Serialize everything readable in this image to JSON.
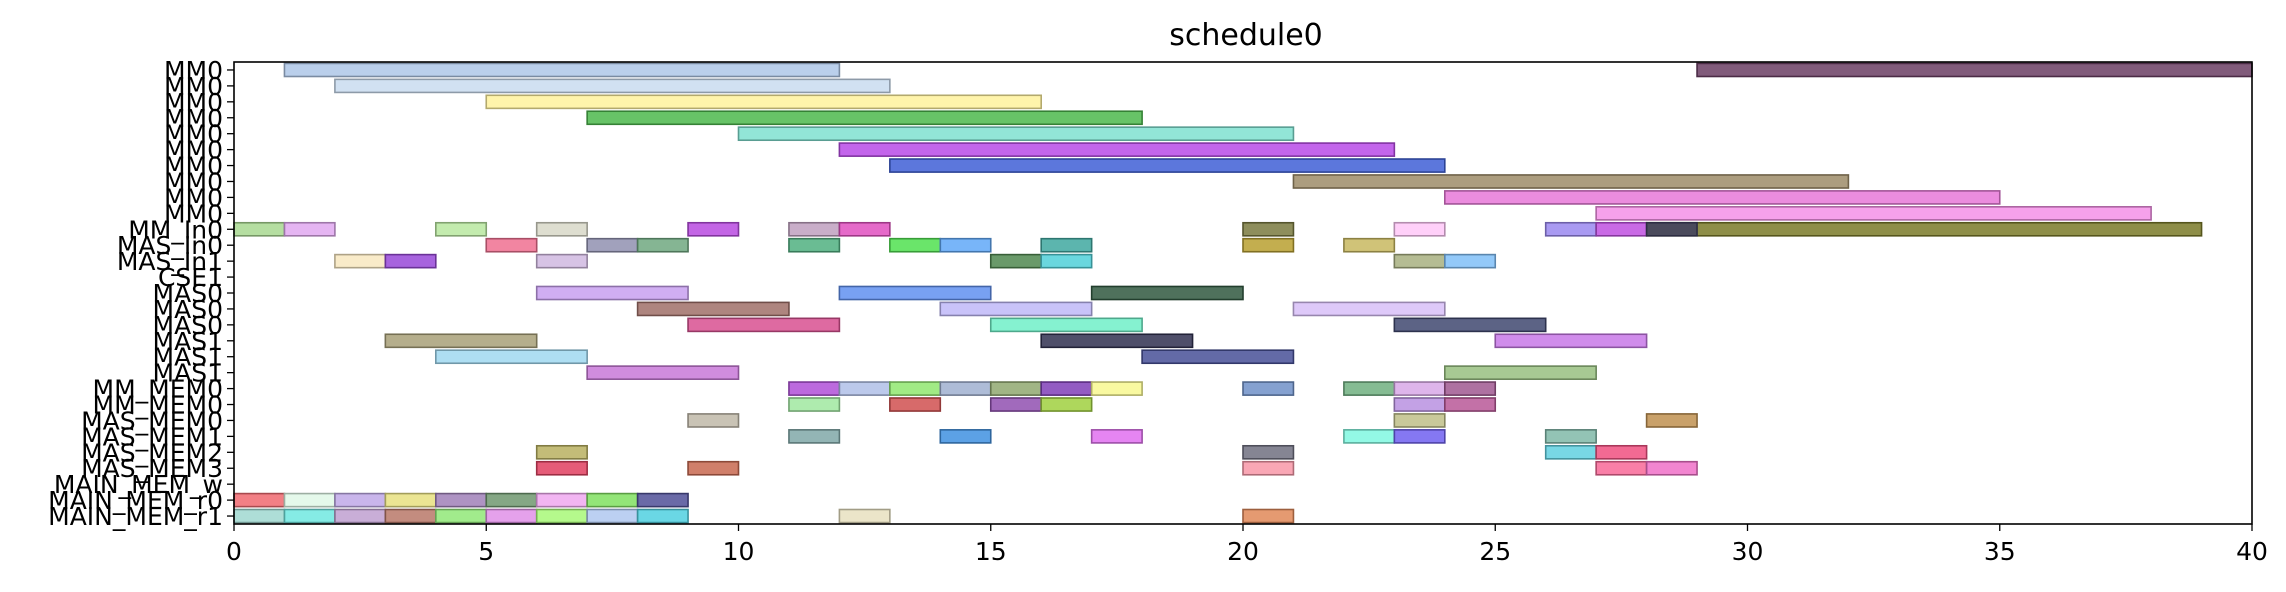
{
  "chart_data": {
    "type": "bar",
    "title": "schedule0",
    "xlabel": "",
    "ylabel": "",
    "xlim": [
      0,
      40
    ],
    "xticks": [
      0,
      5,
      10,
      15,
      20,
      25,
      30,
      35,
      40
    ],
    "grid": false,
    "rows": [
      "MM0",
      "MM0",
      "MM0",
      "MM0",
      "MM0",
      "MM0",
      "MM0",
      "MM0",
      "MM0",
      "MM0",
      "MM_In0",
      "MAS_In0",
      "MAS_In1",
      "CSE1",
      "MAS0",
      "MAS0",
      "MAS0",
      "MAS1",
      "MAS1",
      "MAS1",
      "MM_MEM0",
      "MM_MEM0",
      "MAS_MEM0",
      "MAS_MEM1",
      "MAS_MEM2",
      "MAS_MEM3",
      "MAIN_MEM_w",
      "MAIN_MEM_r0",
      "MAIN_MEM_r1"
    ],
    "bars": [
      {
        "row": 0,
        "start": 1,
        "end": 12,
        "color": "#aec7e8"
      },
      {
        "row": 0,
        "start": 29,
        "end": 40,
        "color": "#6b3e64"
      },
      {
        "row": 1,
        "start": 2,
        "end": 13,
        "color": "#c9dcf0"
      },
      {
        "row": 2,
        "start": 5,
        "end": 16,
        "color": "#fff29c"
      },
      {
        "row": 3,
        "start": 7,
        "end": 18,
        "color": "#4cb84c"
      },
      {
        "row": 4,
        "start": 10,
        "end": 21,
        "color": "#7fe0d0"
      },
      {
        "row": 5,
        "start": 12,
        "end": 23,
        "color": "#b94ae8"
      },
      {
        "row": 6,
        "start": 13,
        "end": 24,
        "color": "#3f5fd6"
      },
      {
        "row": 7,
        "start": 21,
        "end": 32,
        "color": "#9e8c68"
      },
      {
        "row": 8,
        "start": 24,
        "end": 35,
        "color": "#e878d8"
      },
      {
        "row": 9,
        "start": 27,
        "end": 38,
        "color": "#f590e8"
      },
      {
        "row": 10,
        "start": 28,
        "end": 39,
        "color": "#7a7a28"
      },
      {
        "row": 10,
        "start": 0,
        "end": 1,
        "color": "#a8d890"
      },
      {
        "row": 10,
        "start": 1,
        "end": 2,
        "color": "#e0a8f0"
      },
      {
        "row": 10,
        "start": 4,
        "end": 5,
        "color": "#b8e8a0"
      },
      {
        "row": 10,
        "start": 6,
        "end": 7,
        "color": "#d8d8c8"
      },
      {
        "row": 10,
        "start": 9,
        "end": 10,
        "color": "#b84ae0"
      },
      {
        "row": 10,
        "start": 11,
        "end": 12,
        "color": "#c0a0c0"
      },
      {
        "row": 10,
        "start": 12,
        "end": 13,
        "color": "#e050c0"
      },
      {
        "row": 10,
        "start": 20,
        "end": 21,
        "color": "#7a7a40"
      },
      {
        "row": 10,
        "start": 23,
        "end": 24,
        "color": "#ffc8f8"
      },
      {
        "row": 10,
        "start": 26,
        "end": 27,
        "color": "#9a88f0"
      },
      {
        "row": 10,
        "start": 27,
        "end": 28,
        "color": "#c050e0"
      },
      {
        "row": 10,
        "start": 28,
        "end": 29,
        "color": "#404060"
      },
      {
        "row": 11,
        "start": 5,
        "end": 6,
        "color": "#f07090"
      },
      {
        "row": 11,
        "start": 7,
        "end": 8,
        "color": "#9090b0"
      },
      {
        "row": 11,
        "start": 8,
        "end": 9,
        "color": "#70a880"
      },
      {
        "row": 11,
        "start": 11,
        "end": 12,
        "color": "#50b080"
      },
      {
        "row": 11,
        "start": 13,
        "end": 14,
        "color": "#50e050"
      },
      {
        "row": 11,
        "start": 14,
        "end": 15,
        "color": "#60a8f8"
      },
      {
        "row": 11,
        "start": 16,
        "end": 17,
        "color": "#40a8a0"
      },
      {
        "row": 11,
        "start": 20,
        "end": 21,
        "color": "#b8a030"
      },
      {
        "row": 11,
        "start": 22,
        "end": 23,
        "color": "#c8b860"
      },
      {
        "row": 12,
        "start": 2,
        "end": 3,
        "color": "#f8e8c0"
      },
      {
        "row": 12,
        "start": 3,
        "end": 4,
        "color": "#9848d8"
      },
      {
        "row": 12,
        "start": 6,
        "end": 7,
        "color": "#d0b8e0"
      },
      {
        "row": 12,
        "start": 15,
        "end": 16,
        "color": "#508850"
      },
      {
        "row": 12,
        "start": 16,
        "end": 17,
        "color": "#50d0d8"
      },
      {
        "row": 12,
        "start": 23,
        "end": 24,
        "color": "#a8b080"
      },
      {
        "row": 12,
        "start": 24,
        "end": 25,
        "color": "#80c0f8"
      },
      {
        "row": 14,
        "start": 6,
        "end": 9,
        "color": "#c8a0f0"
      },
      {
        "row": 14,
        "start": 12,
        "end": 15,
        "color": "#6090f0"
      },
      {
        "row": 14,
        "start": 17,
        "end": 20,
        "color": "#305840"
      },
      {
        "row": 15,
        "start": 8,
        "end": 11,
        "color": "#a07068"
      },
      {
        "row": 15,
        "start": 14,
        "end": 17,
        "color": "#c0b8f8"
      },
      {
        "row": 15,
        "start": 21,
        "end": 24,
        "color": "#d8c0f8"
      },
      {
        "row": 16,
        "start": 9,
        "end": 12,
        "color": "#d85090"
      },
      {
        "row": 16,
        "start": 15,
        "end": 18,
        "color": "#70f0c8"
      },
      {
        "row": 16,
        "start": 23,
        "end": 26,
        "color": "#404870"
      },
      {
        "row": 17,
        "start": 3,
        "end": 6,
        "color": "#a8a078"
      },
      {
        "row": 17,
        "start": 16,
        "end": 19,
        "color": "#303050"
      },
      {
        "row": 17,
        "start": 25,
        "end": 28,
        "color": "#c878e8"
      },
      {
        "row": 18,
        "start": 4,
        "end": 7,
        "color": "#a0d8f0"
      },
      {
        "row": 18,
        "start": 18,
        "end": 21,
        "color": "#485098"
      },
      {
        "row": 19,
        "start": 7,
        "end": 10,
        "color": "#c878d8"
      },
      {
        "row": 19,
        "start": 24,
        "end": 27,
        "color": "#98c080"
      },
      {
        "row": 20,
        "start": 11,
        "end": 12,
        "color": "#b050d8"
      },
      {
        "row": 20,
        "start": 12,
        "end": 13,
        "color": "#b0c0e8"
      },
      {
        "row": 20,
        "start": 13,
        "end": 14,
        "color": "#90e870"
      },
      {
        "row": 20,
        "start": 14,
        "end": 15,
        "color": "#a0b0d0"
      },
      {
        "row": 20,
        "start": 15,
        "end": 16,
        "color": "#90a870"
      },
      {
        "row": 20,
        "start": 16,
        "end": 17,
        "color": "#8040b8"
      },
      {
        "row": 20,
        "start": 17,
        "end": 18,
        "color": "#f8f890"
      },
      {
        "row": 20,
        "start": 20,
        "end": 21,
        "color": "#7090c8"
      },
      {
        "row": 20,
        "start": 22,
        "end": 23,
        "color": "#70b080"
      },
      {
        "row": 20,
        "start": 23,
        "end": 24,
        "color": "#d8a8e8"
      },
      {
        "row": 20,
        "start": 24,
        "end": 25,
        "color": "#a05890"
      },
      {
        "row": 21,
        "start": 11,
        "end": 12,
        "color": "#a0e8a0"
      },
      {
        "row": 21,
        "start": 13,
        "end": 14,
        "color": "#d05050"
      },
      {
        "row": 21,
        "start": 15,
        "end": 16,
        "color": "#9050b0"
      },
      {
        "row": 21,
        "start": 16,
        "end": 17,
        "color": "#a0d040"
      },
      {
        "row": 21,
        "start": 23,
        "end": 24,
        "color": "#b890e0"
      },
      {
        "row": 21,
        "start": 24,
        "end": 25,
        "color": "#b85898"
      },
      {
        "row": 22,
        "start": 9,
        "end": 10,
        "color": "#c0b8a8"
      },
      {
        "row": 22,
        "start": 23,
        "end": 24,
        "color": "#c0c088"
      },
      {
        "row": 22,
        "start": 28,
        "end": 29,
        "color": "#c09050"
      },
      {
        "row": 23,
        "start": 11,
        "end": 12,
        "color": "#80a8a8"
      },
      {
        "row": 23,
        "start": 14,
        "end": 15,
        "color": "#4090e0"
      },
      {
        "row": 23,
        "start": 17,
        "end": 18,
        "color": "#e070f0"
      },
      {
        "row": 23,
        "start": 22,
        "end": 23,
        "color": "#80f8e0"
      },
      {
        "row": 23,
        "start": 23,
        "end": 24,
        "color": "#7060f0"
      },
      {
        "row": 23,
        "start": 26,
        "end": 27,
        "color": "#80b8a8"
      },
      {
        "row": 24,
        "start": 6,
        "end": 7,
        "color": "#b8b060"
      },
      {
        "row": 24,
        "start": 20,
        "end": 21,
        "color": "#707080"
      },
      {
        "row": 24,
        "start": 26,
        "end": 27,
        "color": "#60d0e0"
      },
      {
        "row": 24,
        "start": 27,
        "end": 28,
        "color": "#f05080"
      },
      {
        "row": 25,
        "start": 6,
        "end": 7,
        "color": "#e04060"
      },
      {
        "row": 25,
        "start": 9,
        "end": 10,
        "color": "#c86850"
      },
      {
        "row": 25,
        "start": 20,
        "end": 21,
        "color": "#f898a8"
      },
      {
        "row": 25,
        "start": 27,
        "end": 28,
        "color": "#f86898"
      },
      {
        "row": 25,
        "start": 28,
        "end": 29,
        "color": "#f070c8"
      },
      {
        "row": 27,
        "start": 0,
        "end": 1,
        "color": "#f06870"
      },
      {
        "row": 27,
        "start": 1,
        "end": 2,
        "color": "#e0f8e8"
      },
      {
        "row": 27,
        "start": 2,
        "end": 3,
        "color": "#c0a8e8"
      },
      {
        "row": 27,
        "start": 3,
        "end": 4,
        "color": "#e8e080"
      },
      {
        "row": 27,
        "start": 4,
        "end": 5,
        "color": "#a080b8"
      },
      {
        "row": 27,
        "start": 5,
        "end": 6,
        "color": "#709870"
      },
      {
        "row": 27,
        "start": 6,
        "end": 7,
        "color": "#f0a8f0"
      },
      {
        "row": 27,
        "start": 7,
        "end": 8,
        "color": "#80e060"
      },
      {
        "row": 27,
        "start": 8,
        "end": 9,
        "color": "#505098"
      },
      {
        "row": 28,
        "start": 0,
        "end": 1,
        "color": "#a0d8d0"
      },
      {
        "row": 28,
        "start": 1,
        "end": 2,
        "color": "#70e8e0"
      },
      {
        "row": 28,
        "start": 2,
        "end": 3,
        "color": "#c0a0d0"
      },
      {
        "row": 28,
        "start": 3,
        "end": 4,
        "color": "#b87868"
      },
      {
        "row": 28,
        "start": 4,
        "end": 5,
        "color": "#90e878"
      },
      {
        "row": 28,
        "start": 5,
        "end": 6,
        "color": "#e090e8"
      },
      {
        "row": 28,
        "start": 6,
        "end": 7,
        "color": "#a8f878"
      },
      {
        "row": 28,
        "start": 7,
        "end": 8,
        "color": "#b0c8f0"
      },
      {
        "row": 28,
        "start": 8,
        "end": 9,
        "color": "#50d0e0"
      },
      {
        "row": 28,
        "start": 12,
        "end": 13,
        "color": "#e8e0c0"
      },
      {
        "row": 28,
        "start": 20,
        "end": 21,
        "color": "#e08858"
      }
    ]
  }
}
